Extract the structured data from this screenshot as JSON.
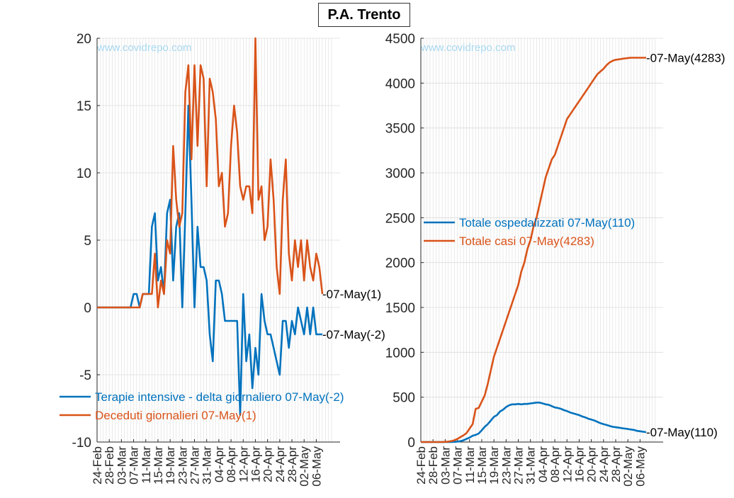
{
  "title": "P.A. Trento",
  "watermark": "www.covidrepo.com",
  "colors": {
    "blue": "#0072BD",
    "orange": "#D95319",
    "grid": "#dcdcdc",
    "axis": "#262626",
    "watermark": "#a8d8f0"
  },
  "chart_data": [
    {
      "type": "line",
      "x_start": "24-Feb",
      "x_end": "07-May",
      "x_tick_labels": [
        "24-Feb",
        "28-Feb",
        "03-Mar",
        "07-Mar",
        "11-Mar",
        "15-Mar",
        "19-Mar",
        "23-Mar",
        "27-Mar",
        "31-Mar",
        "04-Apr",
        "08-Apr",
        "12-Apr",
        "16-Apr",
        "20-Apr",
        "24-Apr",
        "28-Apr",
        "02-May",
        "06-May"
      ],
      "ylim": [
        -10,
        20
      ],
      "y_ticks": [
        "20",
        "15",
        "10",
        "5",
        "0",
        "-5",
        "-10"
      ],
      "grid": true,
      "legend_position": "bottom-left",
      "series": [
        {
          "name": "Terapie intensive - delta giornaliero 07-May(-2)",
          "color": "#0072BD",
          "end_label": "-07-May(-2)",
          "values": [
            0,
            0,
            0,
            0,
            0,
            0,
            0,
            0,
            0,
            0,
            0,
            0,
            1,
            1,
            0,
            1,
            1,
            1,
            6,
            7,
            2,
            3,
            1,
            7,
            8,
            2,
            6,
            7,
            0,
            7,
            15,
            8,
            0,
            6,
            3,
            3,
            2,
            -2,
            -4,
            2,
            2,
            1,
            -1,
            -1,
            -1,
            -1,
            -1,
            -8,
            1,
            -4,
            -2,
            -6,
            -3,
            -5,
            1,
            -1,
            -2,
            -2,
            -3,
            -4,
            -5,
            -1,
            -1,
            -3,
            -1,
            -2,
            0,
            -1,
            -2,
            0,
            -2,
            0,
            -2,
            -2,
            -2
          ]
        },
        {
          "name": "Deceduti giornalieri 07-May(1)",
          "color": "#D95319",
          "end_label": "-07-May(1)",
          "values": [
            0,
            0,
            0,
            0,
            0,
            0,
            0,
            0,
            0,
            0,
            0,
            0,
            0,
            0,
            0,
            1,
            1,
            1,
            1,
            4,
            0,
            2,
            1,
            5,
            4,
            12,
            8,
            6,
            7,
            16,
            18,
            11,
            18,
            12,
            18,
            17,
            9,
            17,
            16,
            14,
            9,
            10,
            6,
            7,
            12,
            15,
            13,
            9,
            8,
            9,
            9,
            7,
            20,
            8,
            9,
            5,
            6,
            11,
            8,
            3,
            1,
            8,
            11,
            4,
            2,
            5,
            3,
            5,
            2,
            5,
            3,
            2,
            4,
            3,
            1
          ]
        }
      ]
    },
    {
      "type": "line",
      "x_start": "24-Feb",
      "x_end": "07-May",
      "x_tick_labels": [
        "24-Feb",
        "28-Feb",
        "03-Mar",
        "07-Mar",
        "11-Mar",
        "15-Mar",
        "19-Mar",
        "23-Mar",
        "27-Mar",
        "31-Mar",
        "04-Apr",
        "08-Apr",
        "12-Apr",
        "16-Apr",
        "20-Apr",
        "24-Apr",
        "28-Apr",
        "02-May",
        "06-May"
      ],
      "ylim": [
        0,
        4500
      ],
      "y_ticks": [
        "4500",
        "4000",
        "3500",
        "3000",
        "2500",
        "2000",
        "1500",
        "1000",
        "500",
        "0"
      ],
      "grid": true,
      "legend_position": "middle-left",
      "series": [
        {
          "name": "Totale ospedalizzati 07-May(110)",
          "color": "#0072BD",
          "end_label": "-07-May(110)",
          "values": [
            0,
            0,
            0,
            0,
            0,
            0,
            0,
            0,
            0,
            0,
            0,
            2,
            5,
            10,
            20,
            35,
            50,
            70,
            80,
            95,
            130,
            170,
            200,
            240,
            280,
            300,
            340,
            360,
            390,
            410,
            420,
            420,
            425,
            420,
            425,
            425,
            430,
            435,
            440,
            440,
            430,
            420,
            415,
            400,
            385,
            380,
            370,
            355,
            345,
            330,
            320,
            310,
            300,
            285,
            275,
            260,
            250,
            240,
            225,
            210,
            200,
            190,
            180,
            170,
            165,
            160,
            155,
            150,
            145,
            140,
            135,
            125,
            120,
            115,
            110
          ]
        },
        {
          "name": "Totale casi 07-May(4283)",
          "color": "#D95319",
          "end_label": "-07-May(4283)",
          "values": [
            0,
            0,
            0,
            0,
            0,
            0,
            0,
            0,
            2,
            5,
            10,
            20,
            35,
            55,
            75,
            100,
            150,
            200,
            370,
            380,
            450,
            520,
            650,
            800,
            950,
            1050,
            1150,
            1250,
            1350,
            1450,
            1550,
            1650,
            1750,
            1900,
            2000,
            2150,
            2250,
            2400,
            2500,
            2650,
            2800,
            2950,
            3050,
            3150,
            3200,
            3300,
            3400,
            3500,
            3600,
            3650,
            3700,
            3750,
            3800,
            3850,
            3900,
            3950,
            4000,
            4050,
            4100,
            4130,
            4160,
            4200,
            4230,
            4250,
            4260,
            4265,
            4270,
            4275,
            4280,
            4283,
            4283,
            4283,
            4283,
            4283,
            4283
          ]
        }
      ]
    }
  ]
}
